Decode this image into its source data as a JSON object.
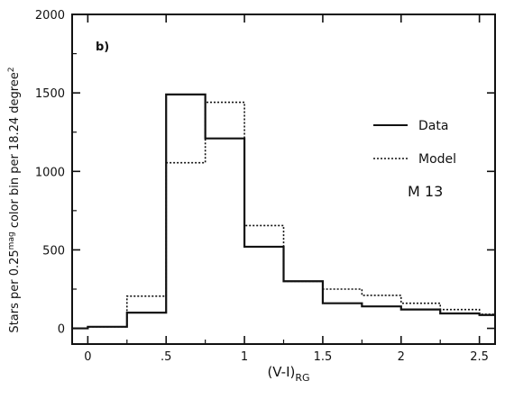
{
  "chart_data": {
    "type": "step",
    "panel_label": "b)",
    "annotation": "M 13",
    "xlabel_main": "(V-I)",
    "xlabel_sub": "RG",
    "ylabel_parts": {
      "prefix": "Stars per 0.25",
      "sup1": "mag",
      "middle": " color bin per 18.24 degree",
      "sup2": "2"
    },
    "xlim": [
      -0.1,
      2.6
    ],
    "ylim": [
      -100,
      2000
    ],
    "x_ticks": [
      0,
      0.5,
      1,
      1.5,
      2,
      2.5
    ],
    "x_tick_labels": [
      "0",
      ".5",
      "1",
      "1.5",
      "2",
      "2.5"
    ],
    "y_ticks": [
      0,
      500,
      1000,
      1500,
      2000
    ],
    "y_tick_labels": [
      "0",
      "500",
      "1000",
      "1500",
      "2000"
    ],
    "bin_edges": [
      -0.25,
      0,
      0.25,
      0.5,
      0.75,
      1.0,
      1.25,
      1.5,
      1.75,
      2.0,
      2.25,
      2.5,
      2.75
    ],
    "series": [
      {
        "name": "Data",
        "style": "solid",
        "values": [
          0,
          10,
          100,
          1490,
          1210,
          520,
          300,
          160,
          140,
          120,
          95,
          85
        ]
      },
      {
        "name": "Model",
        "style": "dotted",
        "values": [
          0,
          10,
          205,
          1055,
          1440,
          655,
          300,
          250,
          210,
          160,
          120,
          90
        ]
      }
    ],
    "legend_position": "right"
  }
}
